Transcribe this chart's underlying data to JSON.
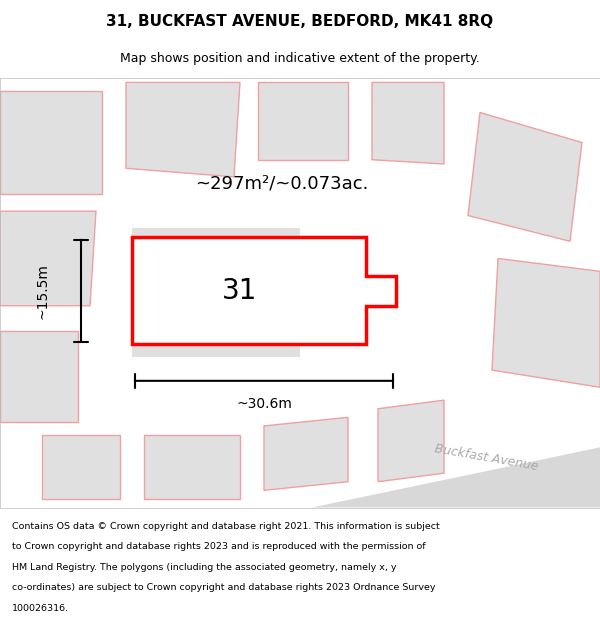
{
  "title_line1": "31, BUCKFAST AVENUE, BEDFORD, MK41 8RQ",
  "title_line2": "Map shows position and indicative extent of the property.",
  "area_text": "~297m²/~0.073ac.",
  "width_label": "~30.6m",
  "height_label": "~15.5m",
  "number_label": "31",
  "street_label": "Buckfast Avenue",
  "footer_lines": [
    "Contains OS data © Crown copyright and database right 2021. This information is subject",
    "to Crown copyright and database rights 2023 and is reproduced with the permission of",
    "HM Land Registry. The polygons (including the associated geometry, namely x, y",
    "co-ordinates) are subject to Crown copyright and database rights 2023 Ordnance Survey",
    "100026316."
  ],
  "map_bg": "#f0f0f0",
  "plot_color_fill": "#ffffff",
  "plot_color_outline": "#ff0000",
  "neighbor_fill": "#e0e0e0",
  "neighbor_outline": "#f0a0a0",
  "road_color": "#d8d8d8",
  "title_bg": "#ffffff",
  "footer_bg": "#ffffff",
  "border_color": "#bbbbbb"
}
